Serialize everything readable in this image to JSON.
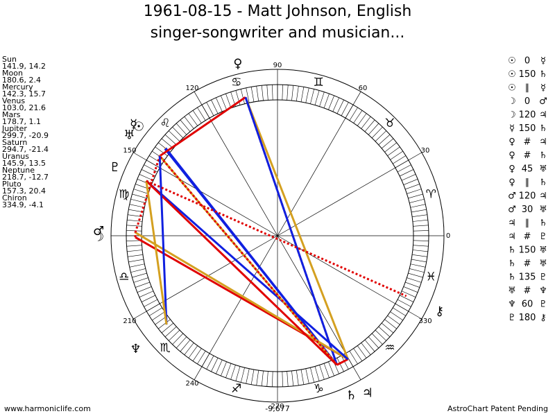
{
  "header": {
    "title_line1": "1961-08-15 - Matt Johnson, English",
    "title_line2": "singer-songwriter and musician..."
  },
  "planets": [
    {
      "name": "Sun",
      "glyph": "☉",
      "coords": "141.9, 14.2"
    },
    {
      "name": "Moon",
      "glyph": "☽",
      "coords": "180.6, 2.4"
    },
    {
      "name": "Mercury",
      "glyph": "☿",
      "coords": "142.3, 15.7"
    },
    {
      "name": "Venus",
      "glyph": "♀",
      "coords": "103.0, 21.6"
    },
    {
      "name": "Mars",
      "glyph": "♂",
      "coords": "178.7, 1.1"
    },
    {
      "name": "Jupiter",
      "glyph": "♃",
      "coords": "299.7, -20.9"
    },
    {
      "name": "Saturn",
      "glyph": "♄",
      "coords": "294.7, -21.4"
    },
    {
      "name": "Uranus",
      "glyph": "♅",
      "coords": "145.9, 13.5"
    },
    {
      "name": "Neptune",
      "glyph": "♆",
      "coords": "218.7, -12.7"
    },
    {
      "name": "Pluto",
      "glyph": "♇",
      "coords": "157.3, 20.4"
    },
    {
      "name": "Chiron",
      "glyph": "⚷",
      "coords": "334.9, -4.1"
    }
  ],
  "signs": [
    "♈",
    "♉",
    "♊",
    "♋",
    "♌",
    "♍",
    "♎",
    "♏",
    "♐",
    "♑",
    "♒",
    "♓"
  ],
  "degree_labels": [
    0,
    30,
    60,
    90,
    120,
    150,
    210,
    240,
    270,
    330
  ],
  "center_value": "-9,677",
  "aspects": [
    {
      "from": "☉",
      "aspect": "0",
      "to": "☿"
    },
    {
      "from": "☉",
      "aspect": "150",
      "to": "♄"
    },
    {
      "from": "☉",
      "aspect": "∥",
      "to": "☿"
    },
    {
      "from": "☽",
      "aspect": "0",
      "to": "♂"
    },
    {
      "from": "☽",
      "aspect": "120",
      "to": "♃"
    },
    {
      "from": "☿",
      "aspect": "150",
      "to": "♄"
    },
    {
      "from": "♀",
      "aspect": "#",
      "to": "♃"
    },
    {
      "from": "♀",
      "aspect": "#",
      "to": "♄"
    },
    {
      "from": "♀",
      "aspect": "45",
      "to": "♅"
    },
    {
      "from": "♀",
      "aspect": "∥",
      "to": "♄"
    },
    {
      "from": "♂",
      "aspect": "120",
      "to": "♃"
    },
    {
      "from": "♂",
      "aspect": "30",
      "to": "♅"
    },
    {
      "from": "♃",
      "aspect": "∥",
      "to": "♄"
    },
    {
      "from": "♃",
      "aspect": "#",
      "to": "♇"
    },
    {
      "from": "♄",
      "aspect": "150",
      "to": "♅"
    },
    {
      "from": "♄",
      "aspect": "#",
      "to": "♅"
    },
    {
      "from": "♄",
      "aspect": "135",
      "to": "♇"
    },
    {
      "from": "♅",
      "aspect": "#",
      "to": "♆"
    },
    {
      "from": "♆",
      "aspect": "60",
      "to": "♇"
    },
    {
      "from": "♇",
      "aspect": "180",
      "to": "⚷"
    }
  ],
  "footer": {
    "left": "www.harmoniclife.com",
    "right": "AstroChart Patent Pending"
  }
}
